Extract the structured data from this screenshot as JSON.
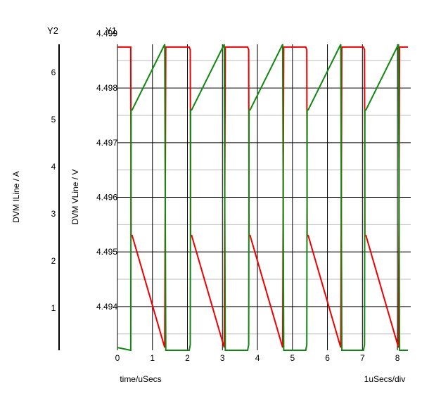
{
  "chart_data": {
    "type": "line",
    "y2_axis_title": "Y2",
    "y1_axis_title": "Y1",
    "y2_label": "DVM ILine / A",
    "y1_label": "DVM VLine / V",
    "xlabel": "time/uSecs",
    "x_scale_note": "1uSecs/div",
    "xlim": [
      0,
      8.3
    ],
    "y1lim": [
      4.4932,
      4.4988
    ],
    "y2lim": [
      0.1,
      6.6
    ],
    "x_ticks": [
      "0",
      "1",
      "2",
      "3",
      "4",
      "5",
      "6",
      "7",
      "8"
    ],
    "y1_ticks": [
      "4.494",
      "4.495",
      "4.496",
      "4.497",
      "4.498",
      "4.499"
    ],
    "y2_ticks": [
      "1",
      "2",
      "3",
      "4",
      "5",
      "6"
    ],
    "grid": true,
    "series": [
      {
        "axis": "y1",
        "color": "#ee0000",
        "x": [
          0,
          0.38,
          0.39,
          0.42,
          1.35,
          1.38,
          2.05,
          2.08,
          2.09,
          2.12,
          3.05,
          3.08,
          3.72,
          3.75,
          3.76,
          3.79,
          4.72,
          4.75,
          5.38,
          5.41,
          5.42,
          5.45,
          6.38,
          6.41,
          7.03,
          7.06,
          7.07,
          7.1,
          8.03,
          8.06,
          8.3
        ],
        "y": [
          4.49875,
          4.49875,
          4.4953,
          4.4953,
          4.49325,
          4.49875,
          4.49875,
          4.4987,
          4.4953,
          4.4953,
          4.49325,
          4.49875,
          4.49875,
          4.4987,
          4.4953,
          4.4953,
          4.49325,
          4.49875,
          4.49875,
          4.4987,
          4.4953,
          4.4953,
          4.49325,
          4.49875,
          4.49875,
          4.4987,
          4.4953,
          4.4953,
          4.49325,
          4.49875,
          4.49875
        ]
      },
      {
        "axis": "y1",
        "color": "#118811",
        "x": [
          0,
          0.38,
          0.39,
          0.42,
          1.35,
          1.38,
          2.05,
          2.08,
          2.09,
          2.12,
          3.05,
          3.08,
          3.72,
          3.75,
          3.76,
          3.79,
          4.72,
          4.75,
          5.38,
          5.41,
          5.42,
          5.45,
          6.38,
          6.41,
          7.03,
          7.06,
          7.07,
          7.1,
          8.03,
          8.06,
          8.3
        ],
        "y": [
          4.49325,
          4.4932,
          4.4976,
          4.4976,
          4.4988,
          4.4932,
          4.4932,
          4.4933,
          4.4976,
          4.4976,
          4.4988,
          4.4932,
          4.4932,
          4.4933,
          4.4976,
          4.4976,
          4.4988,
          4.4932,
          4.4932,
          4.4933,
          4.4976,
          4.4976,
          4.4988,
          4.4932,
          4.4932,
          4.4933,
          4.4976,
          4.4976,
          4.4988,
          4.4932,
          4.4932
        ]
      }
    ]
  }
}
